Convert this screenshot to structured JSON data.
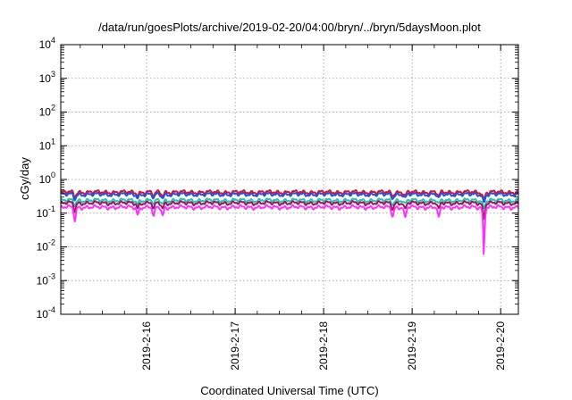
{
  "chart_data": {
    "type": "line",
    "title": "/data/run/goesPlots/archive/2019-02-20/04:00/bryn/../bryn/5daysMoon.plot",
    "xlabel": "Coordinated Universal Time (UTC)",
    "ylabel": "cGy/day",
    "yscale": "log",
    "ylim": [
      0.0001,
      10000
    ],
    "xlim": [
      -0.97,
      4.2
    ],
    "grid": true,
    "x_ticks": [
      {
        "label": "2019-2-16",
        "value": 0
      },
      {
        "label": "2019-2-17",
        "value": 1
      },
      {
        "label": "2019-2-18",
        "value": 2
      },
      {
        "label": "2019-2-19",
        "value": 3
      },
      {
        "label": "2019-2-20",
        "value": 4
      }
    ],
    "y_ticks": [
      {
        "mant": "10",
        "exp": "4",
        "value": 10000
      },
      {
        "mant": "10",
        "exp": "3",
        "value": 1000
      },
      {
        "mant": "10",
        "exp": "2",
        "value": 100
      },
      {
        "mant": "10",
        "exp": "1",
        "value": 10
      },
      {
        "mant": "10",
        "exp": "0",
        "value": 1
      },
      {
        "mant": "10",
        "exp": "-1",
        "value": 0.1
      },
      {
        "mant": "10",
        "exp": "-2",
        "value": 0.01
      },
      {
        "mant": "10",
        "exp": "-3",
        "value": 0.001
      },
      {
        "mant": "10",
        "exp": "-4",
        "value": 0.0001
      }
    ],
    "series": [
      {
        "color": "#e0102a",
        "level": 0.42
      },
      {
        "color": "#2050e8",
        "level": 0.36
      },
      {
        "color": "#20c8a8",
        "level": 0.24
      },
      {
        "color": "#a01060",
        "level": 0.2
      },
      {
        "color": "#ff30ff",
        "level": 0.15
      }
    ],
    "dips": [
      {
        "x": -0.81,
        "depth": 0.6
      },
      {
        "x": -0.1,
        "depth": 0.4
      },
      {
        "x": 0.08,
        "depth": 0.5
      },
      {
        "x": 0.18,
        "depth": 0.45
      },
      {
        "x": 2.78,
        "depth": 0.45
      },
      {
        "x": 2.92,
        "depth": 0.55
      },
      {
        "x": 3.3,
        "depth": 0.55
      },
      {
        "x": 3.81,
        "depth": 0.97
      }
    ]
  }
}
